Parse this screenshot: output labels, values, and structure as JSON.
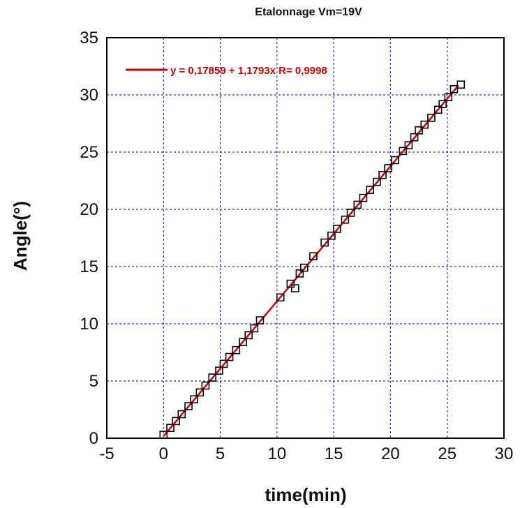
{
  "chart_data": {
    "type": "scatter",
    "title": "Etalonnage Vm=19V",
    "xlabel": "time(min)",
    "ylabel": "Angle(°)",
    "xlim": [
      -5,
      30
    ],
    "ylim": [
      0,
      35
    ],
    "xticks": [
      "-5",
      "0",
      "5",
      "10",
      "15",
      "20",
      "25",
      "30"
    ],
    "yticks": [
      "0",
      "5",
      "10",
      "15",
      "20",
      "25",
      "30",
      "35"
    ],
    "grid": true,
    "legend_position": "top-left",
    "legend_text": "y = 0,17859 + 1,1793x   R= 0,9998",
    "fit": {
      "intercept": 0.17859,
      "slope": 1.1793,
      "x_range": [
        0,
        26
      ],
      "color": "#cc0000"
    },
    "series": [
      {
        "marker": "open-square",
        "color": "#000000",
        "points": [
          [
            0,
            0.3
          ],
          [
            0.6,
            0.9
          ],
          [
            1.1,
            1.5
          ],
          [
            1.6,
            2.1
          ],
          [
            2.2,
            2.8
          ],
          [
            2.7,
            3.4
          ],
          [
            3.2,
            4.0
          ],
          [
            3.7,
            4.6
          ],
          [
            4.3,
            5.3
          ],
          [
            4.9,
            5.9
          ],
          [
            5.3,
            6.5
          ],
          [
            5.8,
            7.1
          ],
          [
            6.4,
            7.7
          ],
          [
            7.0,
            8.4
          ],
          [
            7.5,
            9.0
          ],
          [
            8.0,
            9.6
          ],
          [
            8.5,
            10.3
          ],
          [
            10.3,
            12.3
          ],
          [
            11.2,
            13.5
          ],
          [
            11.6,
            13.1
          ],
          [
            12.0,
            14.4
          ],
          [
            12.4,
            14.9
          ],
          [
            13.2,
            15.9
          ],
          [
            14.2,
            17.1
          ],
          [
            14.8,
            17.7
          ],
          [
            15.3,
            18.3
          ],
          [
            16.0,
            19.1
          ],
          [
            16.5,
            19.7
          ],
          [
            17.1,
            20.4
          ],
          [
            17.6,
            21.0
          ],
          [
            18.2,
            21.7
          ],
          [
            18.8,
            22.4
          ],
          [
            19.3,
            23.0
          ],
          [
            19.8,
            23.6
          ],
          [
            20.4,
            24.3
          ],
          [
            21.1,
            25.1
          ],
          [
            21.6,
            25.6
          ],
          [
            22.1,
            26.3
          ],
          [
            22.5,
            26.9
          ],
          [
            23.0,
            27.4
          ],
          [
            23.6,
            28.0
          ],
          [
            24.2,
            28.7
          ],
          [
            24.6,
            29.2
          ],
          [
            25.1,
            29.8
          ],
          [
            25.6,
            30.5
          ],
          [
            26.2,
            30.9
          ]
        ]
      }
    ]
  }
}
